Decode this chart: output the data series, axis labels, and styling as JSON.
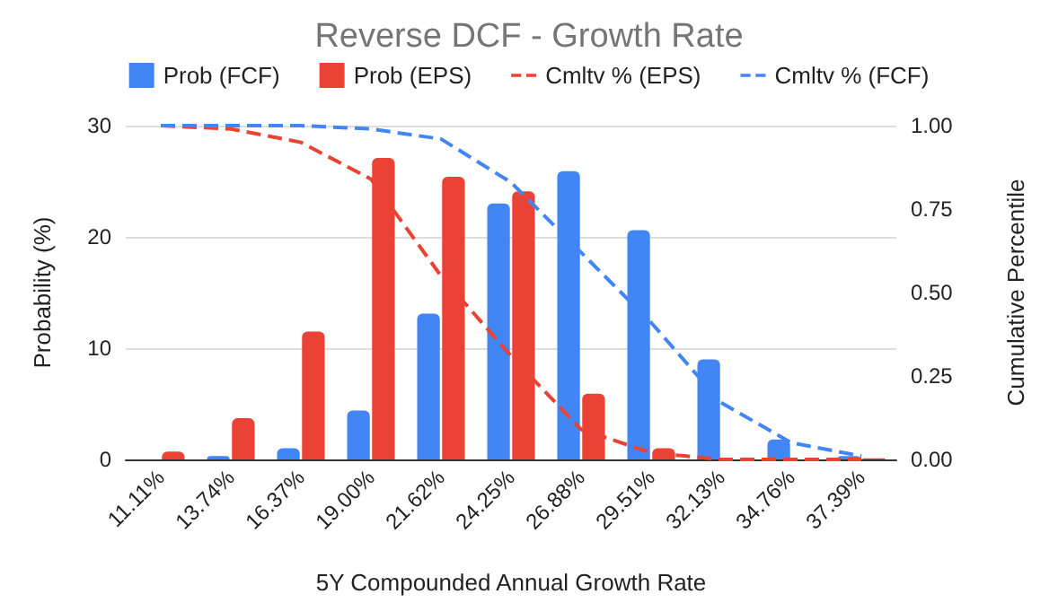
{
  "chart_data": {
    "type": "bar",
    "title": "Reverse DCF - Growth Rate",
    "xlabel": "5Y Compounded Annual Growth Rate",
    "ylabel": "Probability (%)",
    "y2label": "Cumulative Percentile",
    "categories": [
      "11.11%",
      "13.74%",
      "16.37%",
      "19.00%",
      "21.62%",
      "24.25%",
      "26.88%",
      "29.51%",
      "32.13%",
      "34.76%",
      "37.39%"
    ],
    "series": [
      {
        "name": "Prob (FCF)",
        "color": "#4285f4",
        "values": [
          0,
          0.3,
          1.0,
          4.4,
          13.1,
          23.0,
          25.9,
          20.6,
          9.0,
          1.8,
          0.3
        ]
      },
      {
        "name": "Prob (EPS)",
        "color": "#ea4335",
        "values": [
          0.7,
          3.7,
          11.5,
          27.1,
          25.4,
          24.1,
          5.9,
          1.0,
          null,
          null,
          0.1
        ]
      },
      {
        "name": "Cmltv % (EPS)",
        "type": "line",
        "axis": "y2",
        "color": "#ea4335",
        "line_style": "dashed",
        "values": [
          1.0,
          0.99,
          0.95,
          0.84,
          0.55,
          0.31,
          0.09,
          0.02,
          0,
          0,
          0
        ]
      },
      {
        "name": "Cmltv % (FCF)",
        "type": "line",
        "axis": "y2",
        "color": "#4285f4",
        "line_style": "dashed",
        "values": [
          1.0,
          1.0,
          1.0,
          0.99,
          0.96,
          0.83,
          0.62,
          0.41,
          0.17,
          0.05,
          0.01
        ]
      }
    ],
    "ylim": [
      0,
      30
    ],
    "yticks": [
      0,
      10,
      20,
      30
    ],
    "y2lim": [
      0,
      1
    ],
    "y2ticks": [
      {
        "value": 0,
        "label": "0.00"
      },
      0.25,
      {
        "value": 0.5,
        "label": "0.50"
      },
      0.75,
      {
        "value": 1,
        "label": "1.00"
      }
    ],
    "grid": "y",
    "legend": "top",
    "marker": "none"
  }
}
